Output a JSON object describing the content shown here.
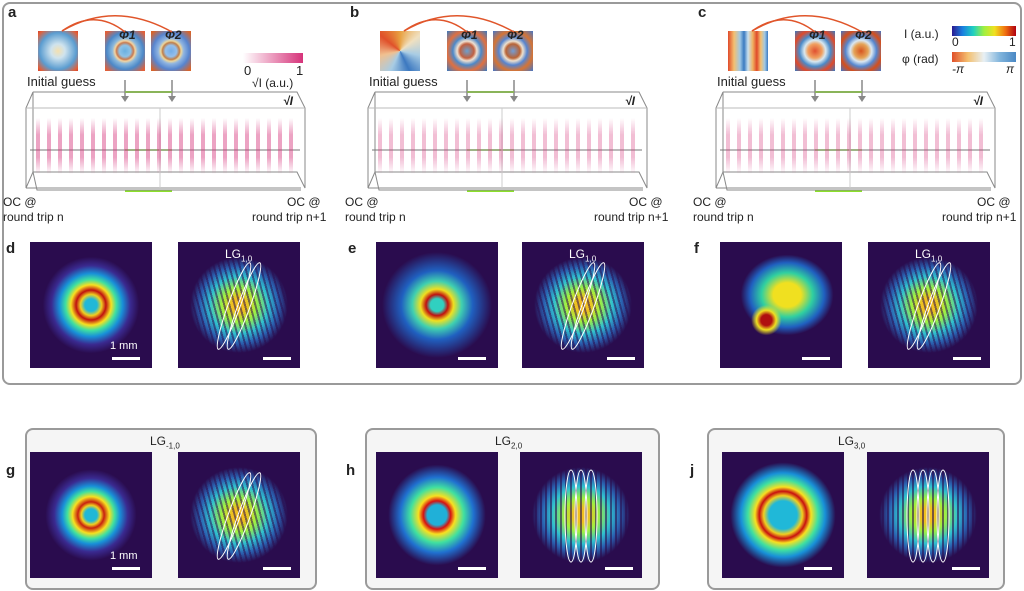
{
  "panels_top": [
    {
      "label": "a",
      "phase1": "Φ1",
      "phase2": "Φ2",
      "initial": "Initial guess",
      "oc_left": [
        "OC @",
        "round trip n"
      ],
      "oc_right": [
        "OC @",
        "round trip n+1"
      ],
      "box_label": "√I"
    },
    {
      "label": "b",
      "phase1": "Φ1",
      "phase2": "Φ2",
      "initial": "Initial guess",
      "oc_left": [
        "OC @",
        "round trip n"
      ],
      "oc_right": [
        "OC @",
        "round trip n+1"
      ],
      "box_label": "√I"
    },
    {
      "label": "c",
      "phase1": "Φ1",
      "phase2": "Φ2",
      "initial": "Initial guess",
      "oc_left": [
        "OC @",
        "round trip n"
      ],
      "oc_right": [
        "OC @",
        "round trip n+1"
      ],
      "box_label": "√I"
    }
  ],
  "colorbars": {
    "sqrtI": {
      "min": "0",
      "max": "1",
      "label": "√I (a.u.)"
    },
    "I": {
      "label": "I (a.u.)",
      "min": "0",
      "max": "1"
    },
    "phi": {
      "label": "φ (rad)",
      "min": "-π",
      "max": "π"
    }
  },
  "beams": [
    {
      "label": "d",
      "mode": "LG",
      "sub": "1,0",
      "scale": "1 mm"
    },
    {
      "label": "e",
      "mode": "LG",
      "sub": "1,0",
      "scale": ""
    },
    {
      "label": "f",
      "mode": "LG",
      "sub": "1,0",
      "scale": ""
    },
    {
      "label": "g",
      "mode": "LG",
      "sub": "-1,0",
      "scale": "1 mm"
    },
    {
      "label": "h",
      "mode": "LG",
      "sub": "2,0",
      "scale": ""
    },
    {
      "label": "j",
      "mode": "LG",
      "sub": "3,0",
      "scale": ""
    }
  ],
  "colors": {
    "frame": "#9a9a9a",
    "arrow": "#e0552a",
    "green": "#8be02a",
    "pink": "#d6337a",
    "beam_bg": "#2a0c4e"
  }
}
